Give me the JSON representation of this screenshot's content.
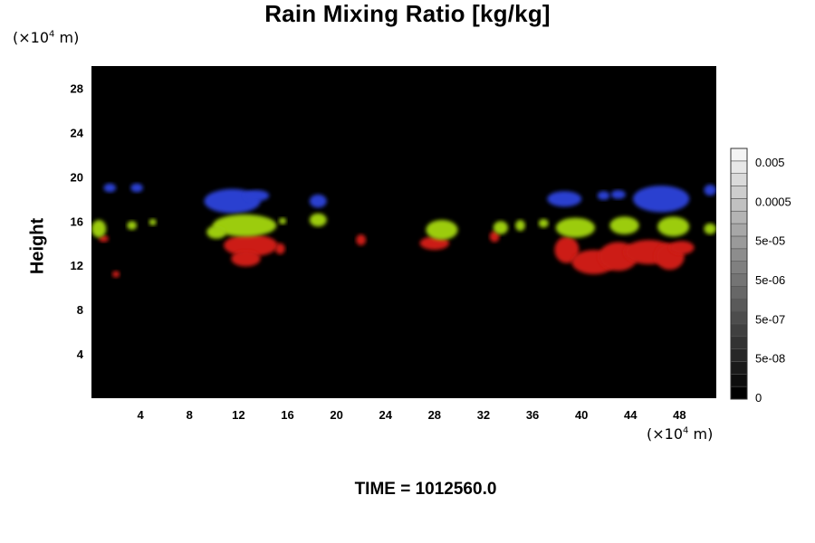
{
  "chart_data": {
    "type": "heatmap",
    "title": "Rain Mixing Ratio [kg/kg]",
    "ylabel": "Height",
    "xlabel": "",
    "x_unit": {
      "prefix": "(×10",
      "exp": "4",
      "suffix": " m)"
    },
    "y_unit": {
      "prefix": "(×10",
      "exp": "4",
      "suffix": " m)"
    },
    "xlim": [
      0,
      51
    ],
    "ylim": [
      0,
      30
    ],
    "x_ticks": [
      4,
      8,
      12,
      16,
      20,
      24,
      28,
      32,
      36,
      40,
      44,
      48
    ],
    "y_ticks": [
      4,
      8,
      12,
      16,
      20,
      24,
      28
    ],
    "background": "#000000",
    "layers": [
      {
        "color": "#2a3fd0",
        "blobs": [
          {
            "x": 11.5,
            "y": 17.8,
            "rx": 2.3,
            "ry": 1.1
          },
          {
            "x": 13.5,
            "y": 18.3,
            "rx": 1.0,
            "ry": 0.5
          },
          {
            "x": 18.5,
            "y": 17.8,
            "rx": 0.7,
            "ry": 0.6
          },
          {
            "x": 3.7,
            "y": 19.0,
            "rx": 0.5,
            "ry": 0.4
          },
          {
            "x": 1.5,
            "y": 19.0,
            "rx": 0.5,
            "ry": 0.4
          },
          {
            "x": 38.6,
            "y": 18.0,
            "rx": 1.4,
            "ry": 0.7
          },
          {
            "x": 46.5,
            "y": 18.0,
            "rx": 2.3,
            "ry": 1.2
          },
          {
            "x": 41.8,
            "y": 18.3,
            "rx": 0.5,
            "ry": 0.4
          },
          {
            "x": 43.0,
            "y": 18.4,
            "rx": 0.6,
            "ry": 0.4
          },
          {
            "x": 50.5,
            "y": 18.8,
            "rx": 0.5,
            "ry": 0.5
          }
        ]
      },
      {
        "color": "#cc1b14",
        "blobs": [
          {
            "x": 13.0,
            "y": 13.8,
            "rx": 2.2,
            "ry": 1.0
          },
          {
            "x": 12.6,
            "y": 12.6,
            "rx": 1.2,
            "ry": 0.7
          },
          {
            "x": 15.4,
            "y": 13.5,
            "rx": 0.4,
            "ry": 0.5
          },
          {
            "x": 22.0,
            "y": 14.3,
            "rx": 0.4,
            "ry": 0.5
          },
          {
            "x": 28.0,
            "y": 14.0,
            "rx": 1.2,
            "ry": 0.6
          },
          {
            "x": 32.9,
            "y": 14.6,
            "rx": 0.4,
            "ry": 0.5
          },
          {
            "x": 38.8,
            "y": 13.4,
            "rx": 1.0,
            "ry": 1.2
          },
          {
            "x": 41.0,
            "y": 12.3,
            "rx": 1.8,
            "ry": 1.1
          },
          {
            "x": 43.0,
            "y": 12.8,
            "rx": 1.6,
            "ry": 1.3
          },
          {
            "x": 45.5,
            "y": 13.2,
            "rx": 2.0,
            "ry": 1.1
          },
          {
            "x": 47.2,
            "y": 12.8,
            "rx": 1.2,
            "ry": 1.2
          },
          {
            "x": 48.2,
            "y": 13.6,
            "rx": 1.0,
            "ry": 0.6
          },
          {
            "x": 1.0,
            "y": 14.4,
            "rx": 0.4,
            "ry": 0.3
          },
          {
            "x": 2.0,
            "y": 11.2,
            "rx": 0.3,
            "ry": 0.3
          }
        ]
      },
      {
        "color": "#9ccc0e",
        "blobs": [
          {
            "x": 12.5,
            "y": 15.6,
            "rx": 2.6,
            "ry": 1.0
          },
          {
            "x": 10.2,
            "y": 15.0,
            "rx": 0.8,
            "ry": 0.6
          },
          {
            "x": 18.5,
            "y": 16.1,
            "rx": 0.7,
            "ry": 0.6
          },
          {
            "x": 28.6,
            "y": 15.2,
            "rx": 1.3,
            "ry": 0.9
          },
          {
            "x": 33.4,
            "y": 15.4,
            "rx": 0.6,
            "ry": 0.6
          },
          {
            "x": 39.5,
            "y": 15.4,
            "rx": 1.6,
            "ry": 0.9
          },
          {
            "x": 43.5,
            "y": 15.6,
            "rx": 1.2,
            "ry": 0.8
          },
          {
            "x": 47.5,
            "y": 15.5,
            "rx": 1.3,
            "ry": 0.9
          },
          {
            "x": 0.6,
            "y": 15.3,
            "rx": 0.6,
            "ry": 0.8
          },
          {
            "x": 3.3,
            "y": 15.6,
            "rx": 0.4,
            "ry": 0.4
          },
          {
            "x": 5.0,
            "y": 15.9,
            "rx": 0.3,
            "ry": 0.3
          },
          {
            "x": 15.6,
            "y": 16.0,
            "rx": 0.3,
            "ry": 0.3
          },
          {
            "x": 35.0,
            "y": 15.6,
            "rx": 0.4,
            "ry": 0.5
          },
          {
            "x": 36.9,
            "y": 15.8,
            "rx": 0.4,
            "ry": 0.4
          },
          {
            "x": 50.5,
            "y": 15.3,
            "rx": 0.5,
            "ry": 0.5
          }
        ]
      }
    ],
    "colorbar": {
      "labels": [
        "0.005",
        "0.0005",
        "5e-05",
        "5e-06",
        "5e-07",
        "5e-08",
        "0"
      ],
      "levels": 20,
      "min_color": "#000000",
      "max_color": "#f4f4f4"
    }
  },
  "time_label": "TIME = 1012560.0"
}
